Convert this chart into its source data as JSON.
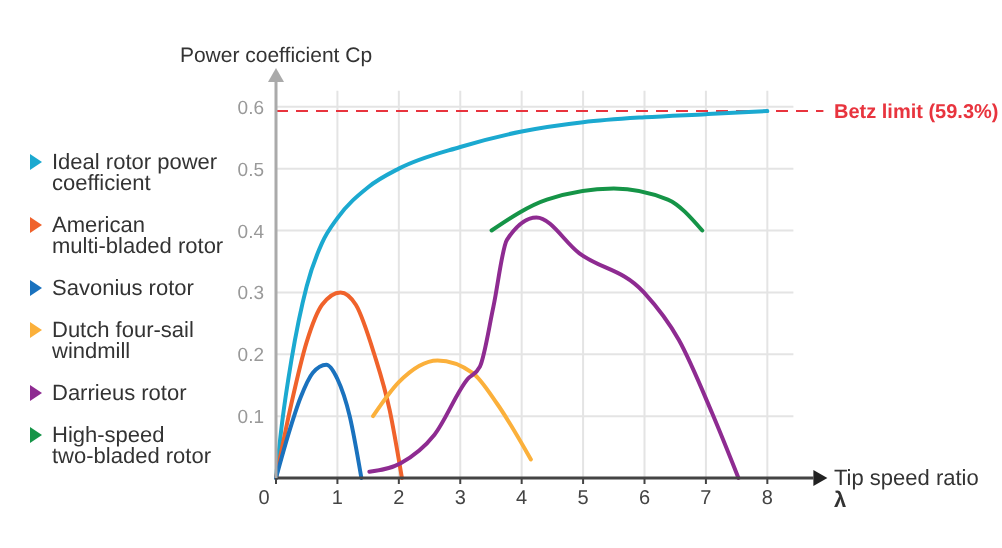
{
  "chart_data": {
    "type": "line",
    "xlabel": "Tip speed ratio\nλ",
    "ylabel": "Power coefficient Cp",
    "xlim": [
      0,
      8.75
    ],
    "ylim": [
      0,
      0.64
    ],
    "xticks": [
      0,
      1,
      2,
      3,
      4,
      5,
      6,
      7,
      8
    ],
    "yticks": [
      0.1,
      0.2,
      0.3,
      0.4,
      0.5,
      0.6
    ],
    "grid": true,
    "legend": "left",
    "marker": "none",
    "line_style": "solid",
    "ref_lines": [
      {
        "axis": "y",
        "value": 0.593,
        "label": "Betz limit (59.3%)",
        "color": "#e8343e",
        "line_style": "dashed"
      }
    ],
    "series": [
      {
        "name": "Ideal rotor power coefficient",
        "color": "#1ba9d0",
        "x": [
          0,
          0.1,
          0.25,
          0.5,
          0.75,
          1,
          1.5,
          2,
          3,
          4,
          5,
          6,
          7,
          8
        ],
        "values": [
          0,
          0.09,
          0.19,
          0.31,
          0.38,
          0.42,
          0.47,
          0.5,
          0.535,
          0.56,
          0.575,
          0.583,
          0.588,
          0.593
        ]
      },
      {
        "name": "American multi-bladed rotor",
        "color": "#f0622b",
        "x": [
          0,
          0.25,
          0.5,
          0.75,
          1.05,
          1.3,
          1.6,
          1.85,
          2.05
        ],
        "values": [
          0,
          0.12,
          0.22,
          0.28,
          0.3,
          0.28,
          0.2,
          0.11,
          0
        ]
      },
      {
        "name": "Savonius rotor",
        "color": "#1a72be",
        "x": [
          0,
          0.2,
          0.4,
          0.6,
          0.82,
          1,
          1.2,
          1.39
        ],
        "values": [
          0,
          0.07,
          0.13,
          0.17,
          0.183,
          0.16,
          0.1,
          0
        ]
      },
      {
        "name": "Dutch four-sail windmill",
        "color": "#fbb03b",
        "x": [
          1.58,
          2,
          2.63,
          3.2,
          3.6,
          4.15
        ],
        "values": [
          0.1,
          0.155,
          0.19,
          0.17,
          0.12,
          0.03
        ]
      },
      {
        "name": "Darrieus rotor",
        "color": "#8e2b91",
        "x": [
          1.52,
          2.03,
          2.58,
          3.12,
          3.32,
          3.54,
          3.76,
          4.24,
          4.94,
          5.99,
          6.56,
          7.1,
          7.53
        ],
        "values": [
          0.01,
          0.024,
          0.07,
          0.16,
          0.18,
          0.277,
          0.385,
          0.421,
          0.363,
          0.3,
          0.223,
          0.105,
          0
        ]
      },
      {
        "name": "High-speed two-bladed rotor",
        "color": "#159447",
        "x": [
          3.51,
          4.41,
          5.5,
          6.38,
          6.94
        ],
        "values": [
          0.4,
          0.45,
          0.468,
          0.45,
          0.4
        ]
      }
    ]
  }
}
